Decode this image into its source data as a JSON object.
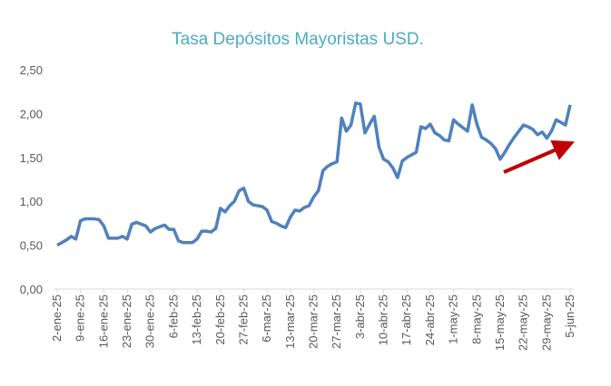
{
  "chart_data": {
    "type": "line",
    "title": "Tasa Depósitos Mayoristas USD.",
    "categories": [
      "2-ene-25",
      null,
      null,
      null,
      null,
      "9-ene-25",
      null,
      null,
      null,
      null,
      "16-ene-25",
      null,
      null,
      null,
      null,
      "23-ene-25",
      null,
      null,
      null,
      null,
      "30-ene-25",
      null,
      null,
      null,
      null,
      "6-feb-25",
      null,
      null,
      null,
      null,
      "13-feb-25",
      null,
      null,
      null,
      null,
      "20-feb-25",
      null,
      null,
      null,
      null,
      "27-feb-25",
      null,
      null,
      null,
      null,
      "6-mar-25",
      null,
      null,
      null,
      null,
      "13-mar-25",
      null,
      null,
      null,
      null,
      "20-mar-25",
      null,
      null,
      null,
      null,
      "27-mar-25",
      null,
      null,
      null,
      null,
      "3-abr-25",
      null,
      null,
      null,
      null,
      "10-abr-25",
      null,
      null,
      null,
      null,
      "17-abr-25",
      null,
      null,
      null,
      null,
      "24-abr-25",
      null,
      null,
      null,
      null,
      "1-may-25",
      null,
      null,
      null,
      null,
      "8-may-25",
      null,
      null,
      null,
      null,
      "15-may-25",
      null,
      null,
      null,
      null,
      "22-may-25",
      null,
      null,
      null,
      null,
      "29-may-25",
      null,
      null,
      null,
      null,
      "5-jun-25"
    ],
    "series": [
      {
        "name": "Tasa Depósitos Mayoristas USD",
        "color": "#4f81bd",
        "values": [
          0.5,
          0.53,
          0.56,
          0.6,
          0.57,
          0.78,
          0.8,
          0.8,
          0.8,
          0.79,
          0.72,
          0.58,
          0.58,
          0.58,
          0.6,
          0.57,
          0.74,
          0.76,
          0.74,
          0.72,
          0.65,
          0.69,
          0.71,
          0.73,
          0.68,
          0.68,
          0.55,
          0.53,
          0.53,
          0.53,
          0.57,
          0.66,
          0.66,
          0.65,
          0.69,
          0.92,
          0.88,
          0.95,
          1.0,
          1.12,
          1.15,
          1.0,
          0.96,
          0.95,
          0.94,
          0.9,
          0.77,
          0.75,
          0.72,
          0.7,
          0.82,
          0.9,
          0.89,
          0.93,
          0.95,
          1.05,
          1.12,
          1.35,
          1.4,
          1.43,
          1.45,
          1.95,
          1.8,
          1.87,
          2.12,
          2.11,
          1.78,
          1.88,
          1.97,
          1.62,
          1.48,
          1.45,
          1.38,
          1.27,
          1.46,
          1.5,
          1.53,
          1.56,
          1.85,
          1.83,
          1.88,
          1.78,
          1.75,
          1.7,
          1.69,
          1.93,
          1.88,
          1.84,
          1.8,
          2.1,
          1.88,
          1.73,
          1.7,
          1.66,
          1.6,
          1.48,
          1.56,
          1.65,
          1.73,
          1.8,
          1.87,
          1.85,
          1.82,
          1.76,
          1.79,
          1.72,
          1.8,
          1.93,
          1.9,
          1.87,
          2.1
        ]
      }
    ],
    "ylim": [
      0,
      2.5
    ],
    "yticks": [
      {
        "value": 0,
        "label": "0,00"
      },
      {
        "value": 0.5,
        "label": "0,50"
      },
      {
        "value": 1,
        "label": "1,00"
      },
      {
        "value": 1.5,
        "label": "1,50"
      },
      {
        "value": 2,
        "label": "2,00"
      },
      {
        "value": 2.5,
        "label": "2,50"
      }
    ],
    "grid": false
  }
}
